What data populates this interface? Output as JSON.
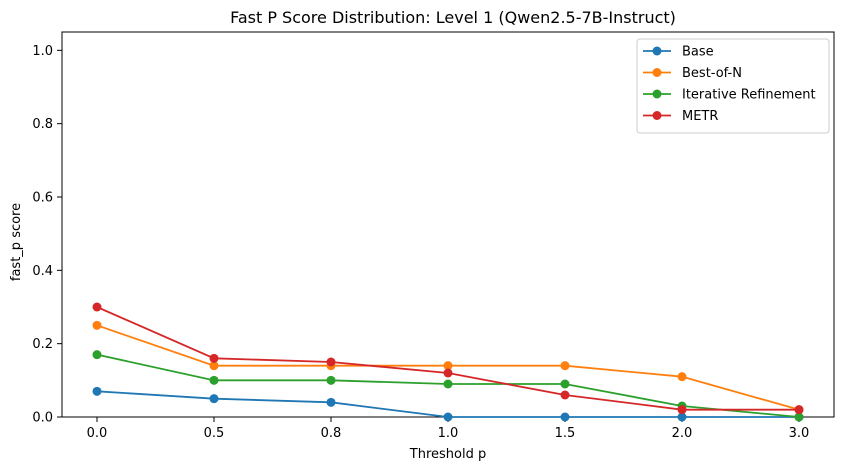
{
  "chart_data": {
    "type": "line",
    "title": "Fast P Score Distribution: Level 1 (Qwen2.5-7B-Instruct)",
    "xlabel": "Threshold p",
    "ylabel": "fast_p score",
    "categories": [
      "0.0",
      "0.5",
      "0.8",
      "1.0",
      "1.5",
      "2.0",
      "3.0"
    ],
    "y_ticks": [
      "0.0",
      "0.2",
      "0.4",
      "0.6",
      "0.8",
      "1.0"
    ],
    "ylim": [
      0,
      1.05
    ],
    "grid": false,
    "legend_position": "top-right",
    "series": [
      {
        "name": "Base",
        "color": "#1f77b4",
        "values": [
          0.07,
          0.05,
          0.04,
          0.0,
          0.0,
          0.0,
          0.0
        ]
      },
      {
        "name": "Best-of-N",
        "color": "#ff7f0e",
        "values": [
          0.25,
          0.14,
          0.14,
          0.14,
          0.14,
          0.11,
          0.02
        ]
      },
      {
        "name": "Iterative Refinement",
        "color": "#2ca02c",
        "values": [
          0.17,
          0.1,
          0.1,
          0.09,
          0.09,
          0.03,
          0.0
        ]
      },
      {
        "name": "METR",
        "color": "#d62728",
        "values": [
          0.3,
          0.16,
          0.15,
          0.12,
          0.06,
          0.02,
          0.02
        ]
      }
    ]
  }
}
